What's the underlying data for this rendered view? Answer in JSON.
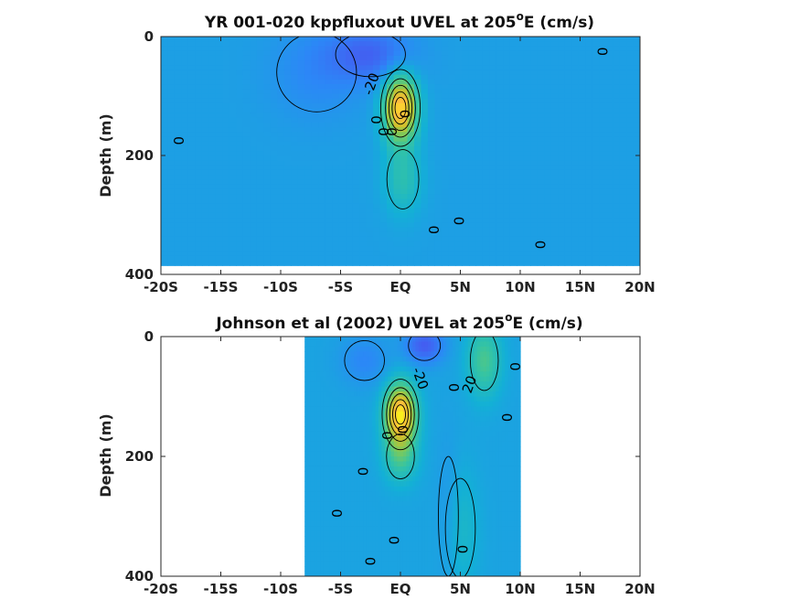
{
  "chart_data": [
    {
      "type": "heatmap",
      "subtype": "filled-contour",
      "title_main": "YR 001-020 kppfluxout UVEL at 205",
      "title_sup": "o",
      "title_tail": "E (cm/s)",
      "ylabel": "Depth (m)",
      "xlabel": "",
      "xlim": [
        -20,
        20
      ],
      "ylim": [
        0,
        400
      ],
      "y_reversed": true,
      "x_ticks": [
        -20,
        -15,
        -10,
        -5,
        0,
        5,
        10,
        15,
        20
      ],
      "x_tick_labels": [
        "-20S",
        "-15S",
        "-10S",
        "-5S",
        "EQ",
        "5N",
        "10N",
        "15N",
        "20N"
      ],
      "y_ticks": [
        0,
        200,
        400
      ],
      "y_tick_labels": [
        "0",
        "200",
        "400"
      ],
      "data_lat_range": [
        -20,
        20
      ],
      "data_depth_range": [
        0,
        385
      ],
      "background_value": -2,
      "features": [
        {
          "kind": "jet",
          "lat": 0,
          "depth": 120,
          "peak": 95,
          "lat_width": 1.4,
          "depth_width": 55
        },
        {
          "kind": "jet-tail",
          "lat": 0.2,
          "depth": 240,
          "peak": 25,
          "lat_width": 1.6,
          "depth_width": 60
        },
        {
          "kind": "westward",
          "lat": -2.5,
          "depth": 30,
          "peak": -28,
          "lat_width": 3.5,
          "depth_width": 45
        },
        {
          "kind": "westward",
          "lat": -7,
          "depth": 60,
          "peak": -12,
          "lat_width": 4,
          "depth_width": 80
        }
      ],
      "contour_labels": [
        {
          "text": "-20",
          "lat": -2.4,
          "depth": 80,
          "angle": -70
        },
        {
          "text": "0",
          "lat": -18.6,
          "depth": 175,
          "angle": 90
        },
        {
          "text": "0",
          "lat": 16.8,
          "depth": 25,
          "angle": 90
        },
        {
          "text": "0",
          "lat": 2.7,
          "depth": 325,
          "angle": 90
        },
        {
          "text": "0",
          "lat": 4.8,
          "depth": 310,
          "angle": 90
        },
        {
          "text": "0",
          "lat": 11.6,
          "depth": 350,
          "angle": 90
        },
        {
          "text": "0",
          "lat": -2.1,
          "depth": 140,
          "angle": 90
        },
        {
          "text": "0",
          "lat": -1.5,
          "depth": 160,
          "angle": 90
        },
        {
          "text": "0",
          "lat": -0.8,
          "depth": 160,
          "angle": 90
        },
        {
          "text": "0",
          "lat": 0.3,
          "depth": 130,
          "angle": 90
        }
      ]
    },
    {
      "type": "heatmap",
      "subtype": "filled-contour",
      "title_main": "Johnson et al (2002) UVEL at 205",
      "title_sup": "o",
      "title_tail": "E (cm/s)",
      "ylabel": "Depth (m)",
      "xlabel": "",
      "xlim": [
        -20,
        20
      ],
      "ylim": [
        0,
        400
      ],
      "y_reversed": true,
      "x_ticks": [
        -20,
        -15,
        -10,
        -5,
        0,
        5,
        10,
        15,
        20
      ],
      "x_tick_labels": [
        "-20S",
        "-15S",
        "-10S",
        "-5S",
        "EQ",
        "5N",
        "10N",
        "15N",
        "20N"
      ],
      "y_ticks": [
        0,
        200,
        400
      ],
      "y_tick_labels": [
        "0",
        "200",
        "400"
      ],
      "data_lat_range": [
        -8,
        10
      ],
      "data_depth_range": [
        0,
        400
      ],
      "background_value": 0,
      "features": [
        {
          "kind": "jet",
          "lat": 0,
          "depth": 130,
          "peak": 95,
          "lat_width": 1.3,
          "depth_width": 50
        },
        {
          "kind": "jet-tail",
          "lat": 0,
          "depth": 200,
          "peak": 30,
          "lat_width": 1.4,
          "depth_width": 45
        },
        {
          "kind": "westward",
          "lat": 2,
          "depth": 15,
          "peak": -35,
          "lat_width": 1.6,
          "depth_width": 30
        },
        {
          "kind": "westward",
          "lat": -3,
          "depth": 40,
          "peak": -15,
          "lat_width": 2.0,
          "depth_width": 40
        },
        {
          "kind": "eastward",
          "lat": 7,
          "depth": 40,
          "peak": 35,
          "lat_width": 1.4,
          "depth_width": 60
        },
        {
          "kind": "eastward",
          "lat": 5,
          "depth": 320,
          "peak": 15,
          "lat_width": 1.5,
          "depth_width": 100
        },
        {
          "kind": "westward",
          "lat": 4,
          "depth": 300,
          "peak": -10,
          "lat_width": 1.0,
          "depth_width": 120
        }
      ],
      "contour_labels": [
        {
          "text": "-20",
          "lat": 1.6,
          "depth": 70,
          "angle": 70
        },
        {
          "text": "20",
          "lat": 5.8,
          "depth": 80,
          "angle": -70
        },
        {
          "text": "0",
          "lat": 4.4,
          "depth": 85,
          "angle": 90
        },
        {
          "text": "0",
          "lat": 9.5,
          "depth": 50,
          "angle": 90
        },
        {
          "text": "0",
          "lat": 8.8,
          "depth": 135,
          "angle": 90
        },
        {
          "text": "0",
          "lat": -3.2,
          "depth": 225,
          "angle": 90
        },
        {
          "text": "0",
          "lat": -5.4,
          "depth": 295,
          "angle": 90
        },
        {
          "text": "0",
          "lat": -0.6,
          "depth": 340,
          "angle": 90
        },
        {
          "text": "0",
          "lat": -2.6,
          "depth": 375,
          "angle": 90
        },
        {
          "text": "0",
          "lat": 5.1,
          "depth": 355,
          "angle": 90
        },
        {
          "text": "0",
          "lat": -1.2,
          "depth": 165,
          "angle": 90
        },
        {
          "text": "0",
          "lat": 0.1,
          "depth": 155,
          "angle": 90
        }
      ]
    }
  ],
  "colors": {
    "colormap": "parula",
    "axis_color": "#262626",
    "contour_color": "#000000"
  }
}
